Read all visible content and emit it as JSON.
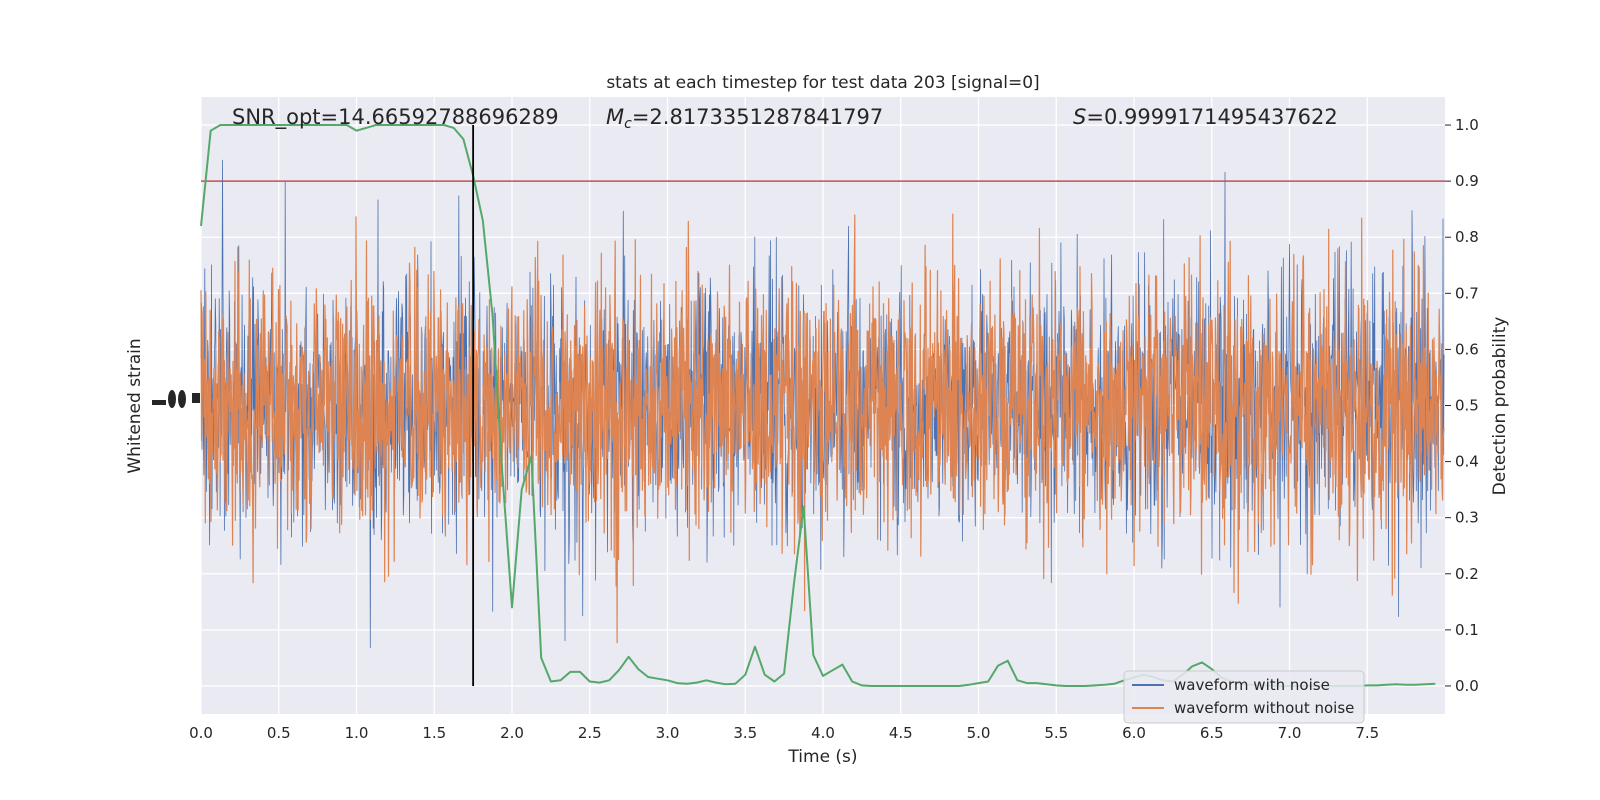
{
  "chart_data": {
    "type": "line",
    "title": "stats at each timestep for test data 203 [signal=0]",
    "xlabel": "Time (s)",
    "ylabel_left": "Whitened strain",
    "ylabel_right": "Detection probability",
    "xlim": [
      0.0,
      8.0
    ],
    "ylim_right": [
      -0.05,
      1.05
    ],
    "x_ticks": [
      "0.0",
      "0.5",
      "1.0",
      "1.5",
      "2.0",
      "2.5",
      "3.0",
      "3.5",
      "4.0",
      "4.5",
      "5.0",
      "5.5",
      "6.0",
      "6.5",
      "7.0",
      "7.5"
    ],
    "y_right_ticks": [
      "0.0",
      "0.1",
      "0.2",
      "0.3",
      "0.4",
      "0.5",
      "0.6",
      "0.7",
      "0.8",
      "0.9",
      "1.0"
    ],
    "grid": true,
    "legend_position": "lower right",
    "annotations": {
      "snr": "SNR_opt=14.66592788696289",
      "mc_symbol": "M",
      "mc_sub": "c",
      "mc_value": "=2.8173351287841797",
      "s_symbol": "S",
      "s_value": "=0.9999171495437622"
    },
    "threshold": 0.9,
    "marker_time": 1.75,
    "series": [
      {
        "name": "waveform with noise",
        "color": "#4c72b0",
        "style": "strain"
      },
      {
        "name": "waveform without noise",
        "color": "#dd8452",
        "style": "strain"
      },
      {
        "color": "#55a868",
        "x": [
          0.0,
          0.0625,
          0.125,
          0.1875,
          0.25,
          0.3125,
          0.375,
          0.4375,
          0.5,
          0.5625,
          0.625,
          0.6875,
          0.75,
          0.8125,
          0.875,
          0.9375,
          1.0,
          1.0625,
          1.125,
          1.1875,
          1.25,
          1.3125,
          1.375,
          1.4375,
          1.5,
          1.5625,
          1.625,
          1.6875,
          1.75,
          1.8125,
          1.875,
          1.9375,
          2.0,
          2.0625,
          2.125,
          2.1875,
          2.25,
          2.3125,
          2.375,
          2.4375,
          2.5,
          2.5625,
          2.625,
          2.6875,
          2.75,
          2.8125,
          2.875,
          2.9375,
          3.0,
          3.0625,
          3.125,
          3.1875,
          3.25,
          3.3125,
          3.375,
          3.4375,
          3.5,
          3.5625,
          3.625,
          3.6875,
          3.75,
          3.8125,
          3.875,
          3.9375,
          4.0,
          4.0625,
          4.125,
          4.1875,
          4.25,
          4.3125,
          4.375,
          4.4375,
          4.5,
          4.5625,
          4.625,
          4.6875,
          4.75,
          4.8125,
          4.875,
          4.9375,
          5.0,
          5.0625,
          5.125,
          5.1875,
          5.25,
          5.3125,
          5.375,
          5.4375,
          5.5,
          5.5625,
          5.625,
          5.6875,
          5.75,
          5.8125,
          5.875,
          5.9375,
          6.0,
          6.0625,
          6.125,
          6.1875,
          6.25,
          6.3125,
          6.375,
          6.4375,
          6.5,
          6.5625,
          6.625,
          6.6875,
          6.75,
          6.8125,
          6.875,
          6.9375,
          7.0,
          7.0625,
          7.125,
          7.1875,
          7.25,
          7.3125,
          7.375,
          7.4375,
          7.5,
          7.5625,
          7.625,
          7.6875,
          7.75,
          7.8125,
          7.875,
          7.9375
        ],
        "y": [
          0.82,
          0.99,
          1.0,
          1.0,
          1.0,
          1.0,
          1.0,
          1.0,
          1.0,
          1.0,
          1.0,
          1.0,
          1.0,
          1.0,
          1.0,
          1.0,
          0.99,
          0.995,
          1.0,
          1.0,
          1.0,
          1.0,
          1.0,
          1.0,
          1.0,
          1.0,
          0.995,
          0.975,
          0.91,
          0.83,
          0.66,
          0.38,
          0.14,
          0.35,
          0.41,
          0.05,
          0.008,
          0.01,
          0.025,
          0.025,
          0.008,
          0.006,
          0.01,
          0.028,
          0.052,
          0.03,
          0.016,
          0.013,
          0.01,
          0.005,
          0.004,
          0.006,
          0.01,
          0.006,
          0.003,
          0.004,
          0.02,
          0.07,
          0.02,
          0.008,
          0.022,
          0.18,
          0.32,
          0.055,
          0.018,
          0.028,
          0.038,
          0.008,
          0.001,
          0.0,
          0.0,
          0.0,
          0.0,
          0.0,
          0.0,
          0.0,
          0.0,
          0.0,
          0.0,
          0.002,
          0.005,
          0.008,
          0.036,
          0.045,
          0.01,
          0.005,
          0.005,
          0.003,
          0.001,
          0.0,
          0.0,
          0.0,
          0.001,
          0.002,
          0.004,
          0.01,
          0.015,
          0.02,
          0.016,
          0.01,
          0.008,
          0.02,
          0.035,
          0.042,
          0.03,
          0.015,
          0.008,
          0.004,
          0.002,
          0.001,
          0.001,
          0.0,
          0.0,
          0.0,
          0.0,
          0.0,
          0.0,
          0.0,
          0.0,
          0.0,
          0.001,
          0.001,
          0.002,
          0.003,
          0.002,
          0.002,
          0.003,
          0.004
        ]
      }
    ],
    "strain_seed": 203
  }
}
